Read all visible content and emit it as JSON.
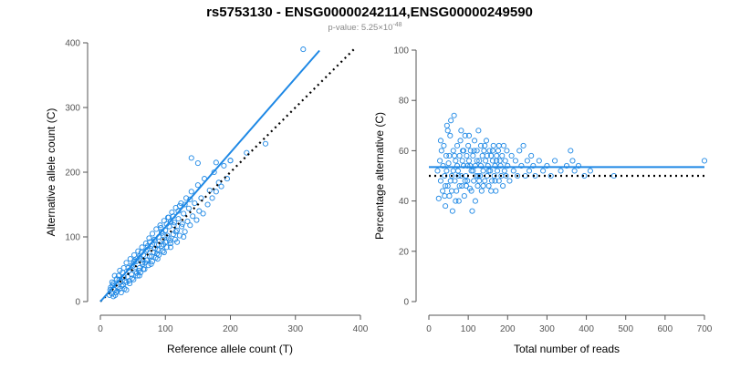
{
  "header": {
    "title": "rs5753130 - ENSG00000242114,ENSG00000249590",
    "pvalue_prefix": "p-value: 5.25×10",
    "pvalue_exponent": "-48"
  },
  "colors": {
    "accent": "#1e88e5",
    "points": "#1e88e5",
    "reference_line": "#000000",
    "axis": "#555555",
    "subtitle": "#888888"
  },
  "chart_data": [
    {
      "type": "scatter",
      "title": "",
      "xlabel": "Reference allele count (T)",
      "ylabel": "Alternative allele count (C)",
      "xlim": [
        0,
        400
      ],
      "ylim": [
        0,
        400
      ],
      "xticks": [
        0,
        100,
        200,
        300,
        400
      ],
      "yticks": [
        0,
        100,
        200,
        300,
        400
      ],
      "grid": false,
      "points": [
        [
          14,
          10
        ],
        [
          16,
          22
        ],
        [
          18,
          12
        ],
        [
          20,
          28
        ],
        [
          22,
          18
        ],
        [
          24,
          14
        ],
        [
          25,
          35
        ],
        [
          27,
          22
        ],
        [
          28,
          40
        ],
        [
          30,
          20
        ],
        [
          31,
          30
        ],
        [
          32,
          14
        ],
        [
          34,
          45
        ],
        [
          35,
          26
        ],
        [
          36,
          52
        ],
        [
          38,
          32
        ],
        [
          40,
          18
        ],
        [
          40,
          60
        ],
        [
          42,
          38
        ],
        [
          44,
          48
        ],
        [
          45,
          28
        ],
        [
          46,
          66
        ],
        [
          48,
          42
        ],
        [
          50,
          55
        ],
        [
          51,
          34
        ],
        [
          52,
          72
        ],
        [
          54,
          46
        ],
        [
          55,
          62
        ],
        [
          57,
          40
        ],
        [
          58,
          78
        ],
        [
          60,
          52
        ],
        [
          61,
          68
        ],
        [
          62,
          45
        ],
        [
          64,
          84
        ],
        [
          65,
          58
        ],
        [
          66,
          72
        ],
        [
          68,
          50
        ],
        [
          70,
          90
        ],
        [
          71,
          64
        ],
        [
          72,
          80
        ],
        [
          74,
          56
        ],
        [
          75,
          98
        ],
        [
          76,
          70
        ],
        [
          78,
          86
        ],
        [
          80,
          62
        ],
        [
          80,
          105
        ],
        [
          82,
          76
        ],
        [
          84,
          94
        ],
        [
          85,
          68
        ],
        [
          86,
          112
        ],
        [
          88,
          80
        ],
        [
          90,
          100
        ],
        [
          90,
          72
        ],
        [
          92,
          118
        ],
        [
          94,
          86
        ],
        [
          95,
          106
        ],
        [
          96,
          78
        ],
        [
          98,
          125
        ],
        [
          100,
          92
        ],
        [
          100,
          110
        ],
        [
          102,
          84
        ],
        [
          104,
          130
        ],
        [
          105,
          98
        ],
        [
          106,
          116
        ],
        [
          108,
          90
        ],
        [
          110,
          138
        ],
        [
          112,
          104
        ],
        [
          114,
          122
        ],
        [
          115,
          96
        ],
        [
          116,
          145
        ],
        [
          118,
          110
        ],
        [
          120,
          128
        ],
        [
          122,
          102
        ],
        [
          124,
          152
        ],
        [
          125,
          116
        ],
        [
          128,
          136
        ],
        [
          130,
          108
        ],
        [
          132,
          160
        ],
        [
          134,
          124
        ],
        [
          136,
          144
        ],
        [
          138,
          118
        ],
        [
          140,
          170
        ],
        [
          142,
          132
        ],
        [
          145,
          152
        ],
        [
          148,
          126
        ],
        [
          150,
          180
        ],
        [
          152,
          140
        ],
        [
          155,
          160
        ],
        [
          158,
          136
        ],
        [
          160,
          190
        ],
        [
          165,
          150
        ],
        [
          168,
          172
        ],
        [
          172,
          160
        ],
        [
          175,
          200
        ],
        [
          178,
          170
        ],
        [
          182,
          184
        ],
        [
          186,
          178
        ],
        [
          190,
          210
        ],
        [
          195,
          190
        ],
        [
          200,
          218
        ],
        [
          140,
          222
        ],
        [
          150,
          214
        ],
        [
          178,
          215
        ],
        [
          200,
          218
        ],
        [
          225,
          230
        ],
        [
          254,
          244
        ],
        [
          312,
          390
        ],
        [
          20,
          8
        ],
        [
          26,
          16
        ],
        [
          33,
          24
        ],
        [
          44,
          32
        ],
        [
          56,
          44
        ],
        [
          66,
          50
        ],
        [
          78,
          58
        ],
        [
          88,
          66
        ],
        [
          98,
          76
        ],
        [
          108,
          84
        ],
        [
          118,
          92
        ],
        [
          128,
          100
        ],
        [
          36,
          38
        ],
        [
          48,
          56
        ],
        [
          60,
          70
        ],
        [
          72,
          64
        ],
        [
          84,
          82
        ],
        [
          96,
          96
        ],
        [
          108,
          124
        ],
        [
          120,
          140
        ],
        [
          130,
          150
        ],
        [
          18,
          30
        ],
        [
          22,
          40
        ],
        [
          30,
          48
        ],
        [
          40,
          30
        ],
        [
          52,
          62
        ],
        [
          64,
          60
        ],
        [
          76,
          92
        ],
        [
          90,
          88
        ],
        [
          102,
          120
        ],
        [
          112,
          132
        ],
        [
          126,
          120
        ],
        [
          60,
          40
        ],
        [
          70,
          78
        ],
        [
          80,
          88
        ],
        [
          94,
          108
        ],
        [
          105,
          130
        ],
        [
          116,
          108
        ],
        [
          122,
          148
        ],
        [
          138,
          158
        ],
        [
          15,
          18
        ],
        [
          19,
          25
        ],
        [
          23,
          10
        ],
        [
          29,
          34
        ],
        [
          37,
          20
        ],
        [
          43,
          52
        ],
        [
          49,
          36
        ],
        [
          53,
          64
        ],
        [
          59,
          48
        ],
        [
          63,
          76
        ],
        [
          69,
          60
        ],
        [
          73,
          86
        ],
        [
          79,
          70
        ],
        [
          83,
          96
        ],
        [
          87,
          74
        ],
        [
          93,
          114
        ],
        [
          97,
          88
        ],
        [
          103,
          102
        ],
        [
          107,
          94
        ],
        [
          113,
          118
        ]
      ],
      "fit_line": [
        [
          0,
          0
        ],
        [
          337,
          388
        ]
      ],
      "reference_line": [
        [
          0,
          0
        ],
        [
          390,
          390
        ]
      ]
    },
    {
      "type": "scatter",
      "title": "",
      "xlabel": "Total number of reads",
      "ylabel": "Percentage alternative (C)",
      "xlim": [
        0,
        700
      ],
      "ylim": [
        0,
        100
      ],
      "xticks": [
        0,
        100,
        200,
        300,
        400,
        500,
        600,
        700
      ],
      "yticks": [
        0,
        20,
        40,
        60,
        80,
        100
      ],
      "grid": false,
      "points": [
        [
          22,
          52
        ],
        [
          25,
          41
        ],
        [
          28,
          56
        ],
        [
          30,
          48
        ],
        [
          32,
          60
        ],
        [
          35,
          44
        ],
        [
          38,
          62
        ],
        [
          40,
          50
        ],
        [
          42,
          38
        ],
        [
          44,
          58
        ],
        [
          46,
          70
        ],
        [
          48,
          46
        ],
        [
          50,
          55
        ],
        [
          52,
          42
        ],
        [
          54,
          66
        ],
        [
          56,
          72
        ],
        [
          58,
          50
        ],
        [
          60,
          36
        ],
        [
          62,
          60
        ],
        [
          64,
          74
        ],
        [
          66,
          48
        ],
        [
          68,
          56
        ],
        [
          70,
          44
        ],
        [
          72,
          62
        ],
        [
          74,
          52
        ],
        [
          76,
          40
        ],
        [
          78,
          58
        ],
        [
          80,
          64
        ],
        [
          82,
          50
        ],
        [
          84,
          46
        ],
        [
          86,
          60
        ],
        [
          88,
          54
        ],
        [
          90,
          42
        ],
        [
          92,
          66
        ],
        [
          94,
          50
        ],
        [
          96,
          58
        ],
        [
          98,
          48
        ],
        [
          100,
          62
        ],
        [
          102,
          56
        ],
        [
          104,
          45
        ],
        [
          106,
          60
        ],
        [
          108,
          52
        ],
        [
          110,
          36
        ],
        [
          112,
          58
        ],
        [
          114,
          48
        ],
        [
          116,
          64
        ],
        [
          118,
          54
        ],
        [
          120,
          50
        ],
        [
          122,
          60
        ],
        [
          124,
          46
        ],
        [
          126,
          68
        ],
        [
          128,
          56
        ],
        [
          130,
          50
        ],
        [
          132,
          62
        ],
        [
          134,
          44
        ],
        [
          136,
          58
        ],
        [
          138,
          52
        ],
        [
          140,
          60
        ],
        [
          142,
          48
        ],
        [
          144,
          56
        ],
        [
          146,
          64
        ],
        [
          148,
          50
        ],
        [
          150,
          54
        ],
        [
          152,
          46
        ],
        [
          154,
          60
        ],
        [
          156,
          52
        ],
        [
          158,
          58
        ],
        [
          160,
          48
        ],
        [
          162,
          56
        ],
        [
          164,
          62
        ],
        [
          166,
          50
        ],
        [
          168,
          54
        ],
        [
          170,
          44
        ],
        [
          172,
          58
        ],
        [
          174,
          52
        ],
        [
          176,
          60
        ],
        [
          178,
          48
        ],
        [
          180,
          56
        ],
        [
          182,
          54
        ],
        [
          184,
          50
        ],
        [
          186,
          58
        ],
        [
          188,
          46
        ],
        [
          190,
          62
        ],
        [
          192,
          52
        ],
        [
          194,
          56
        ],
        [
          196,
          50
        ],
        [
          198,
          60
        ],
        [
          200,
          54
        ],
        [
          205,
          48
        ],
        [
          210,
          58
        ],
        [
          215,
          52
        ],
        [
          220,
          56
        ],
        [
          225,
          50
        ],
        [
          230,
          60
        ],
        [
          235,
          54
        ],
        [
          240,
          62
        ],
        [
          245,
          50
        ],
        [
          250,
          56
        ],
        [
          255,
          52
        ],
        [
          260,
          58
        ],
        [
          265,
          54
        ],
        [
          270,
          50
        ],
        [
          280,
          56
        ],
        [
          290,
          52
        ],
        [
          300,
          54
        ],
        [
          310,
          50
        ],
        [
          320,
          56
        ],
        [
          335,
          52
        ],
        [
          350,
          54
        ],
        [
          360,
          60
        ],
        [
          365,
          56
        ],
        [
          370,
          52
        ],
        [
          380,
          54
        ],
        [
          395,
          50
        ],
        [
          410,
          52
        ],
        [
          470,
          50
        ],
        [
          700,
          56
        ],
        [
          30,
          64
        ],
        [
          36,
          54
        ],
        [
          42,
          46
        ],
        [
          48,
          68
        ],
        [
          52,
          58
        ],
        [
          58,
          44
        ],
        [
          62,
          52
        ],
        [
          68,
          40
        ],
        [
          72,
          54
        ],
        [
          78,
          46
        ],
        [
          82,
          68
        ],
        [
          88,
          60
        ],
        [
          92,
          48
        ],
        [
          98,
          54
        ],
        [
          102,
          66
        ],
        [
          108,
          44
        ],
        [
          112,
          52
        ],
        [
          118,
          40
        ],
        [
          122,
          56
        ],
        [
          128,
          48
        ],
        [
          132,
          54
        ],
        [
          138,
          46
        ],
        [
          142,
          62
        ],
        [
          148,
          58
        ],
        [
          152,
          52
        ],
        [
          158,
          44
        ],
        [
          162,
          60
        ],
        [
          168,
          48
        ],
        [
          172,
          56
        ],
        [
          178,
          62
        ],
        [
          40,
          42
        ],
        [
          45,
          52
        ],
        [
          55,
          48
        ],
        [
          65,
          58
        ],
        [
          75,
          50
        ],
        [
          85,
          56
        ],
        [
          95,
          46
        ],
        [
          105,
          54
        ],
        [
          115,
          60
        ],
        [
          125,
          50
        ]
      ],
      "fit_line": [
        [
          0,
          53.5
        ],
        [
          700,
          53.5
        ]
      ],
      "reference_line": [
        [
          0,
          50
        ],
        [
          700,
          50
        ]
      ]
    }
  ]
}
